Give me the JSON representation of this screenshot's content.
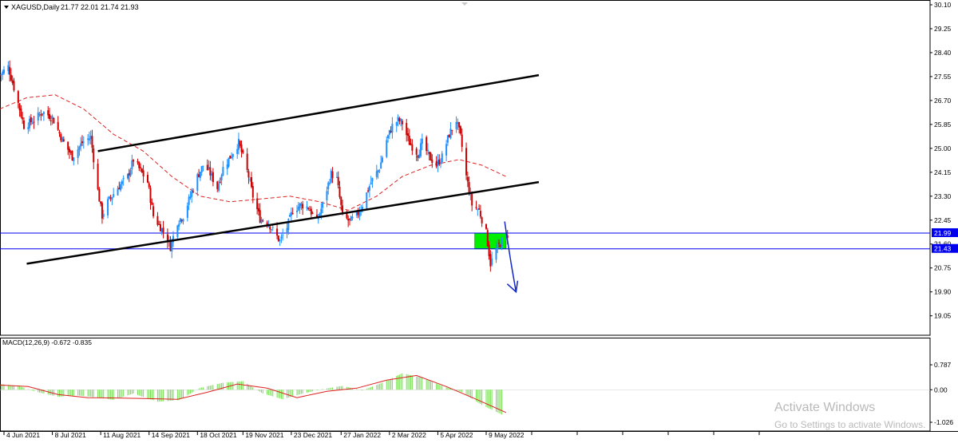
{
  "chart_header": {
    "symbol_label": "XAGUSD,Daily",
    "ohlc_label": "21.77 22.01 21.74 21.93"
  },
  "chart_data": [
    {
      "type": "candlestick",
      "title": "XAGUSD,Daily",
      "ylim": [
        18.7,
        30.1
      ],
      "y_ticks": [
        "30.10",
        "29.25",
        "28.40",
        "27.55",
        "26.70",
        "25.85",
        "25.00",
        "24.15",
        "23.30",
        "22.45",
        "21.60",
        "20.75",
        "19.90",
        "19.05"
      ],
      "x_ticks": [
        "4 Jun 2021",
        "8 Jul 2021",
        "11 Aug 2021",
        "14 Sep 2021",
        "18 Oct 2021",
        "19 Nov 2021",
        "23 Dec 2021",
        "27 Jan 2022",
        "2 Mar 2022",
        "5 Apr 2022",
        "9 May 2022"
      ],
      "last_bar": {
        "open": 21.77,
        "high": 22.01,
        "low": 21.74,
        "close": 21.93
      },
      "close_path": [
        [
          "2021-06-01",
          27.6
        ],
        [
          "2021-06-07",
          27.9
        ],
        [
          "2021-06-14",
          26.6
        ],
        [
          "2021-06-18",
          25.8
        ],
        [
          "2021-06-25",
          26.0
        ],
        [
          "2021-07-01",
          26.3
        ],
        [
          "2021-07-08",
          26.1
        ],
        [
          "2021-07-15",
          25.3
        ],
        [
          "2021-07-22",
          24.7
        ],
        [
          "2021-07-29",
          25.2
        ],
        [
          "2021-08-04",
          25.4
        ],
        [
          "2021-08-09",
          23.5
        ],
        [
          "2021-08-12",
          22.6
        ],
        [
          "2021-08-16",
          23.1
        ],
        [
          "2021-08-23",
          23.6
        ],
        [
          "2021-08-30",
          24.0
        ],
        [
          "2021-09-03",
          24.6
        ],
        [
          "2021-09-08",
          24.2
        ],
        [
          "2021-09-13",
          23.8
        ],
        [
          "2021-09-17",
          22.6
        ],
        [
          "2021-09-22",
          22.2
        ],
        [
          "2021-09-27",
          21.8
        ],
        [
          "2021-09-29",
          21.5
        ],
        [
          "2021-10-04",
          22.4
        ],
        [
          "2021-10-08",
          22.6
        ],
        [
          "2021-10-13",
          23.3
        ],
        [
          "2021-10-18",
          24.0
        ],
        [
          "2021-10-22",
          24.4
        ],
        [
          "2021-10-26",
          24.2
        ],
        [
          "2021-11-01",
          23.6
        ],
        [
          "2021-11-05",
          24.3
        ],
        [
          "2021-11-10",
          24.7
        ],
        [
          "2021-11-16",
          25.2
        ],
        [
          "2021-11-19",
          24.7
        ],
        [
          "2021-11-23",
          24.0
        ],
        [
          "2021-11-26",
          23.3
        ],
        [
          "2021-12-01",
          22.5
        ],
        [
          "2021-12-06",
          22.4
        ],
        [
          "2021-12-10",
          22.1
        ],
        [
          "2021-12-15",
          21.7
        ],
        [
          "2021-12-20",
          22.2
        ],
        [
          "2021-12-24",
          22.8
        ],
        [
          "2021-12-30",
          23.0
        ],
        [
          "2022-01-04",
          22.9
        ],
        [
          "2022-01-10",
          22.4
        ],
        [
          "2022-01-14",
          23.0
        ],
        [
          "2022-01-20",
          24.1
        ],
        [
          "2022-01-24",
          23.9
        ],
        [
          "2022-01-28",
          22.6
        ],
        [
          "2022-02-02",
          22.4
        ],
        [
          "2022-02-07",
          22.6
        ],
        [
          "2022-02-11",
          23.0
        ],
        [
          "2022-02-17",
          23.8
        ],
        [
          "2022-02-23",
          24.3
        ],
        [
          "2022-02-28",
          25.3
        ],
        [
          "2022-03-04",
          25.8
        ],
        [
          "2022-03-08",
          26.0
        ],
        [
          "2022-03-11",
          25.9
        ],
        [
          "2022-03-16",
          25.2
        ],
        [
          "2022-03-22",
          24.8
        ],
        [
          "2022-03-25",
          25.2
        ],
        [
          "2022-03-30",
          24.7
        ],
        [
          "2022-04-04",
          24.4
        ],
        [
          "2022-04-08",
          24.7
        ],
        [
          "2022-04-13",
          25.5
        ],
        [
          "2022-04-18",
          26.0
        ],
        [
          "2022-04-21",
          25.4
        ],
        [
          "2022-04-25",
          24.0
        ],
        [
          "2022-04-29",
          23.0
        ],
        [
          "2022-05-04",
          22.8
        ],
        [
          "2022-05-09",
          22.0
        ],
        [
          "2022-05-12",
          20.9
        ],
        [
          "2022-05-16",
          21.4
        ],
        [
          "2022-05-20",
          21.7
        ],
        [
          "2022-05-24",
          21.93
        ]
      ],
      "moving_average": [
        [
          "2021-06-01",
          26.4
        ],
        [
          "2021-06-20",
          26.8
        ],
        [
          "2021-07-10",
          26.9
        ],
        [
          "2021-07-30",
          26.4
        ],
        [
          "2021-08-20",
          25.5
        ],
        [
          "2021-09-10",
          24.9
        ],
        [
          "2021-09-30",
          24.0
        ],
        [
          "2021-10-20",
          23.3
        ],
        [
          "2021-11-10",
          23.1
        ],
        [
          "2021-12-01",
          23.2
        ],
        [
          "2021-12-22",
          23.3
        ],
        [
          "2022-01-12",
          23.1
        ],
        [
          "2022-02-01",
          22.8
        ],
        [
          "2022-02-21",
          23.3
        ],
        [
          "2022-03-11",
          24.0
        ],
        [
          "2022-03-31",
          24.4
        ],
        [
          "2022-04-20",
          24.6
        ],
        [
          "2022-05-06",
          24.4
        ],
        [
          "2022-05-23",
          24.0
        ]
      ],
      "horizontal_levels": [
        {
          "value": 21.99,
          "label": "21.99",
          "color": "#0000ee"
        },
        {
          "value": 21.43,
          "label": "21.43",
          "color": "#0000ee"
        }
      ],
      "trendlines": [
        {
          "from": [
            "2021-08-09",
            24.9
          ],
          "to": [
            "2022-06-15",
            27.6
          ]
        },
        {
          "from": [
            "2021-06-20",
            20.9
          ],
          "to": [
            "2022-06-15",
            23.8
          ]
        }
      ],
      "zone": {
        "from_date": "2022-05-01",
        "to_date": "2022-05-23",
        "top": 21.99,
        "bottom": 21.43,
        "color": "#00ee00"
      },
      "projection_arrow": {
        "from": [
          "2022-05-22",
          22.4
        ],
        "to": [
          "2022-05-30",
          19.9
        ],
        "color": "#1428c8"
      },
      "colors": {
        "bull": "#1e90ff",
        "bear": "#cc0000",
        "ma": "#e02020",
        "trendline": "#000000"
      }
    },
    {
      "type": "bar",
      "title": "MACD(12,26,9)",
      "values_label": "-0.672 -0.835",
      "ylim": [
        -1.026,
        0.787
      ],
      "y_ticks": [
        "0.787",
        "0.00",
        "-1.026"
      ],
      "histogram": [
        [
          "2021-06-01",
          0.18
        ],
        [
          "2021-06-14",
          0.12
        ],
        [
          "2021-06-28",
          -0.08
        ],
        [
          "2021-07-12",
          -0.22
        ],
        [
          "2021-07-26",
          -0.18
        ],
        [
          "2021-08-09",
          -0.25
        ],
        [
          "2021-08-20",
          -0.32
        ],
        [
          "2021-09-03",
          -0.12
        ],
        [
          "2021-09-20",
          -0.38
        ],
        [
          "2021-10-05",
          -0.33
        ],
        [
          "2021-10-20",
          0.06
        ],
        [
          "2021-11-05",
          0.22
        ],
        [
          "2021-11-19",
          0.27
        ],
        [
          "2021-12-03",
          -0.12
        ],
        [
          "2021-12-17",
          -0.3
        ],
        [
          "2021-12-31",
          -0.12
        ],
        [
          "2022-01-14",
          0.02
        ],
        [
          "2022-01-28",
          0.12
        ],
        [
          "2022-02-11",
          -0.02
        ],
        [
          "2022-02-25",
          0.22
        ],
        [
          "2022-03-11",
          0.52
        ],
        [
          "2022-03-25",
          0.38
        ],
        [
          "2022-04-08",
          0.12
        ],
        [
          "2022-04-22",
          -0.08
        ],
        [
          "2022-05-06",
          -0.48
        ],
        [
          "2022-05-20",
          -0.78
        ]
      ],
      "signal": [
        [
          "2021-06-01",
          0.15
        ],
        [
          "2021-06-21",
          0.1
        ],
        [
          "2021-07-12",
          -0.15
        ],
        [
          "2021-08-02",
          -0.25
        ],
        [
          "2021-08-23",
          -0.26
        ],
        [
          "2021-09-13",
          -0.28
        ],
        [
          "2021-10-04",
          -0.3
        ],
        [
          "2021-10-25",
          -0.08
        ],
        [
          "2021-11-15",
          0.18
        ],
        [
          "2021-12-06",
          0.05
        ],
        [
          "2021-12-27",
          -0.25
        ],
        [
          "2022-01-17",
          -0.05
        ],
        [
          "2022-02-07",
          0.05
        ],
        [
          "2022-02-28",
          0.3
        ],
        [
          "2022-03-21",
          0.45
        ],
        [
          "2022-04-11",
          0.1
        ],
        [
          "2022-05-02",
          -0.3
        ],
        [
          "2022-05-23",
          -0.72
        ]
      ]
    }
  ],
  "watermark": {
    "line1": "Activate Windows",
    "line2": "Go to Settings to activate Windows."
  }
}
